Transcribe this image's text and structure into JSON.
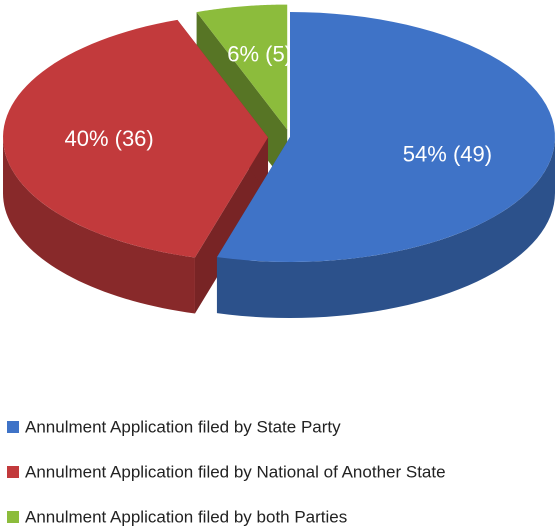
{
  "chart_data": {
    "type": "pie",
    "categories": [
      "Annulment Application filed by State Party",
      "Annulment Application filed by National of Another State",
      "Annulment Application filed by both Parties"
    ],
    "values": [
      49,
      36,
      5
    ],
    "value_labels": [
      "54% (49)",
      "40% (36)",
      "6% (5)"
    ],
    "colors": [
      "#3f73c7",
      "#c23a3c",
      "#8cbc3c"
    ],
    "legend": "bottom"
  }
}
